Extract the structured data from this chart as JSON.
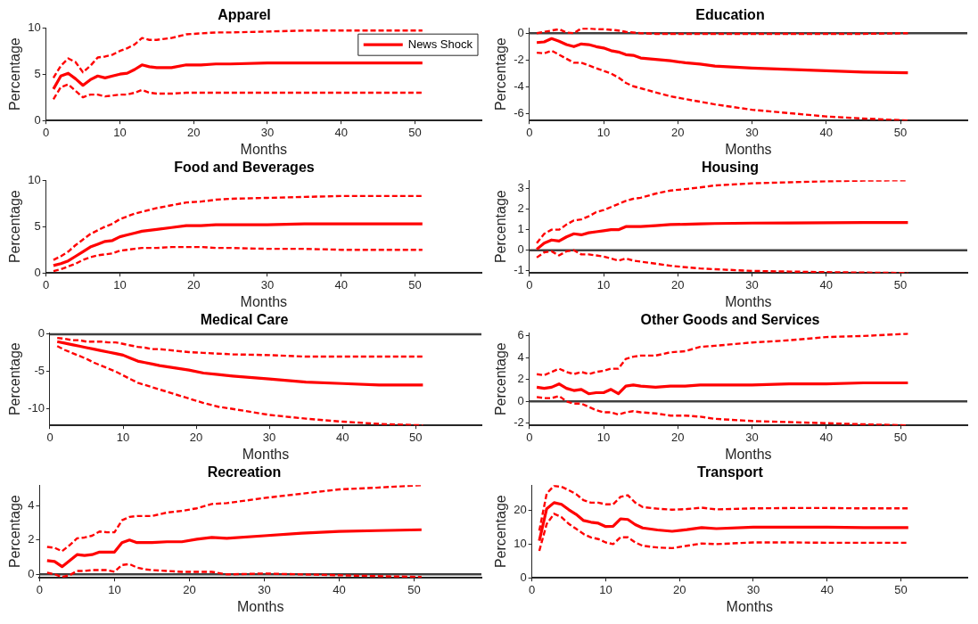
{
  "chart_data": [
    {
      "type": "line",
      "title": "Apparel",
      "xlabel": "Months",
      "ylabel": "Percentage",
      "marker": "none",
      "legend": "top right",
      "xlim": [
        0,
        59
      ],
      "xticks": [
        0,
        10,
        20,
        30,
        40,
        50
      ],
      "ylim": [
        0,
        10
      ],
      "yticks": [
        0,
        5,
        10
      ],
      "x": [
        1,
        2,
        3,
        4,
        5,
        6,
        7,
        8,
        9,
        10,
        11,
        12,
        13,
        14,
        15,
        17,
        19,
        21,
        23,
        25,
        30,
        35,
        40,
        45,
        51
      ],
      "series": [
        {
          "name": "News Shock",
          "color": "#ff0000",
          "line_style": "solid",
          "values": [
            3.4,
            4.8,
            5.1,
            4.5,
            3.8,
            4.4,
            4.8,
            4.6,
            4.8,
            5.0,
            5.1,
            5.5,
            6.0,
            5.8,
            5.7,
            5.7,
            6.0,
            6.0,
            6.1,
            6.1,
            6.2,
            6.2,
            6.2,
            6.2,
            6.2
          ]
        },
        {
          "color": "#ff0000",
          "line_style": "dashed",
          "values": [
            4.6,
            5.9,
            6.7,
            6.3,
            5.2,
            5.9,
            6.8,
            6.9,
            7.1,
            7.5,
            7.8,
            8.2,
            8.9,
            8.7,
            8.7,
            8.9,
            9.3,
            9.4,
            9.5,
            9.5,
            9.6,
            9.7,
            9.7,
            9.7,
            9.7
          ]
        },
        {
          "color": "#ff0000",
          "line_style": "dashed",
          "values": [
            2.3,
            3.6,
            3.9,
            3.2,
            2.5,
            2.8,
            2.8,
            2.6,
            2.7,
            2.8,
            2.8,
            3.0,
            3.3,
            3.0,
            2.9,
            2.9,
            3.0,
            3.0,
            3.0,
            3.0,
            3.0,
            3.0,
            3.0,
            3.0,
            3.0
          ]
        }
      ]
    },
    {
      "type": "line",
      "title": "Education",
      "xlabel": "Months",
      "ylabel": "Percentage",
      "marker": "none",
      "xlim": [
        0,
        59
      ],
      "xticks": [
        0,
        10,
        20,
        30,
        40,
        50
      ],
      "ylim": [
        -6.5,
        0.4
      ],
      "yticks": [
        -6,
        -4,
        -2,
        0
      ],
      "x": [
        1,
        2,
        3,
        4,
        5,
        6,
        7,
        8,
        9,
        10,
        11,
        12,
        13,
        14,
        15,
        17,
        19,
        21,
        23,
        25,
        30,
        35,
        40,
        45,
        51
      ],
      "ref_lines": [
        {
          "axis": "y",
          "value": 0,
          "color": "#404040"
        }
      ],
      "series": [
        {
          "color": "#ff0000",
          "line_style": "solid",
          "values": [
            -0.7,
            -0.65,
            -0.4,
            -0.6,
            -0.85,
            -1.0,
            -0.8,
            -0.85,
            -1.0,
            -1.1,
            -1.3,
            -1.4,
            -1.6,
            -1.65,
            -1.85,
            -1.95,
            -2.05,
            -2.2,
            -2.3,
            -2.45,
            -2.6,
            -2.7,
            -2.8,
            -2.9,
            -2.95
          ]
        },
        {
          "color": "#ff0000",
          "line_style": "dashed",
          "values": [
            0.0,
            0.1,
            0.2,
            0.3,
            0.05,
            0.0,
            0.35,
            0.35,
            0.3,
            0.3,
            0.25,
            0.2,
            0.1,
            0.05,
            0.0,
            -0.05,
            -0.05,
            -0.05,
            -0.05,
            -0.05,
            -0.05,
            -0.05,
            -0.05,
            -0.05,
            0.0
          ]
        },
        {
          "color": "#ff0000",
          "line_style": "dashed",
          "values": [
            -1.45,
            -1.5,
            -1.3,
            -1.6,
            -1.9,
            -2.2,
            -2.2,
            -2.4,
            -2.6,
            -2.8,
            -3.0,
            -3.3,
            -3.7,
            -3.95,
            -4.1,
            -4.4,
            -4.7,
            -4.9,
            -5.1,
            -5.3,
            -5.7,
            -5.95,
            -6.2,
            -6.35,
            -6.5
          ]
        }
      ]
    },
    {
      "type": "line",
      "title": "Food and Beverages",
      "xlabel": "Months",
      "ylabel": "Percentage",
      "marker": "none",
      "xlim": [
        0,
        59
      ],
      "xticks": [
        0,
        10,
        20,
        30,
        40,
        50
      ],
      "ylim": [
        0,
        10
      ],
      "yticks": [
        0,
        5,
        10
      ],
      "x": [
        1,
        2,
        3,
        4,
        5,
        6,
        7,
        8,
        9,
        10,
        11,
        12,
        13,
        14,
        15,
        17,
        19,
        21,
        23,
        25,
        30,
        35,
        40,
        45,
        51
      ],
      "series": [
        {
          "color": "#ff0000",
          "line_style": "solid",
          "values": [
            0.8,
            1.0,
            1.3,
            1.8,
            2.3,
            2.8,
            3.1,
            3.4,
            3.5,
            3.9,
            4.1,
            4.3,
            4.5,
            4.6,
            4.7,
            4.9,
            5.1,
            5.1,
            5.2,
            5.2,
            5.2,
            5.3,
            5.3,
            5.3,
            5.3
          ]
        },
        {
          "color": "#ff0000",
          "line_style": "dashed",
          "values": [
            1.4,
            1.8,
            2.3,
            3.0,
            3.6,
            4.2,
            4.6,
            5.0,
            5.3,
            5.8,
            6.1,
            6.4,
            6.6,
            6.8,
            7.0,
            7.3,
            7.6,
            7.7,
            7.9,
            8.0,
            8.1,
            8.2,
            8.3,
            8.3,
            8.3
          ]
        },
        {
          "color": "#ff0000",
          "line_style": "dashed",
          "values": [
            0.2,
            0.4,
            0.7,
            1.0,
            1.4,
            1.7,
            1.9,
            2.0,
            2.1,
            2.4,
            2.5,
            2.6,
            2.7,
            2.7,
            2.7,
            2.8,
            2.8,
            2.8,
            2.7,
            2.7,
            2.6,
            2.6,
            2.5,
            2.5,
            2.5
          ]
        }
      ]
    },
    {
      "type": "line",
      "title": "Housing",
      "xlabel": "Months",
      "ylabel": "Percentage",
      "marker": "none",
      "xlim": [
        0,
        59
      ],
      "xticks": [
        0,
        10,
        20,
        30,
        40,
        50
      ],
      "ylim": [
        -1.1,
        3.4
      ],
      "yticks": [
        -1,
        0,
        1,
        2,
        3
      ],
      "x": [
        1,
        2,
        3,
        4,
        5,
        6,
        7,
        8,
        9,
        10,
        11,
        12,
        13,
        14,
        15,
        17,
        19,
        21,
        23,
        25,
        30,
        35,
        40,
        45,
        51
      ],
      "ref_lines": [
        {
          "axis": "y",
          "value": 0,
          "color": "#404040"
        }
      ],
      "series": [
        {
          "color": "#ff0000",
          "line_style": "solid",
          "values": [
            0.05,
            0.35,
            0.5,
            0.45,
            0.65,
            0.8,
            0.75,
            0.85,
            0.9,
            0.95,
            1.0,
            1.0,
            1.15,
            1.15,
            1.15,
            1.2,
            1.25,
            1.26,
            1.28,
            1.3,
            1.32,
            1.33,
            1.34,
            1.35,
            1.35
          ]
        },
        {
          "color": "#ff0000",
          "line_style": "dashed",
          "values": [
            0.35,
            0.8,
            1.0,
            1.0,
            1.25,
            1.45,
            1.5,
            1.65,
            1.85,
            1.95,
            2.1,
            2.25,
            2.4,
            2.5,
            2.55,
            2.75,
            2.9,
            2.97,
            3.05,
            3.15,
            3.25,
            3.3,
            3.35,
            3.38,
            3.4
          ]
        },
        {
          "color": "#ff0000",
          "line_style": "dashed",
          "values": [
            -0.35,
            -0.1,
            -0.05,
            -0.25,
            -0.05,
            0.0,
            -0.2,
            -0.2,
            -0.25,
            -0.3,
            -0.4,
            -0.5,
            -0.4,
            -0.5,
            -0.55,
            -0.65,
            -0.75,
            -0.82,
            -0.88,
            -0.92,
            -1.0,
            -1.03,
            -1.06,
            -1.08,
            -1.1
          ]
        }
      ]
    },
    {
      "type": "line",
      "title": "Medical Care",
      "xlabel": "Months",
      "ylabel": "Percentage",
      "marker": "none",
      "xlim": [
        0,
        59
      ],
      "xticks": [
        0,
        10,
        20,
        30,
        40,
        50
      ],
      "ylim": [
        -12.2,
        0.2
      ],
      "yticks": [
        -10,
        -5,
        0
      ],
      "x": [
        1,
        2,
        3,
        4,
        5,
        6,
        7,
        8,
        9,
        10,
        11,
        12,
        13,
        14,
        15,
        17,
        19,
        21,
        23,
        25,
        30,
        35,
        40,
        45,
        51
      ],
      "ref_lines": [
        {
          "axis": "y",
          "value": 0,
          "color": "#404040"
        }
      ],
      "series": [
        {
          "color": "#ff0000",
          "line_style": "solid",
          "values": [
            -1.0,
            -1.2,
            -1.4,
            -1.6,
            -1.8,
            -2.0,
            -2.2,
            -2.4,
            -2.6,
            -2.8,
            -3.2,
            -3.6,
            -3.8,
            -4.0,
            -4.2,
            -4.5,
            -4.8,
            -5.2,
            -5.4,
            -5.6,
            -6.0,
            -6.4,
            -6.6,
            -6.8,
            -6.8
          ]
        },
        {
          "color": "#ff0000",
          "line_style": "dashed",
          "values": [
            -0.5,
            -0.6,
            -0.8,
            -0.8,
            -1.0,
            -1.0,
            -1.0,
            -1.1,
            -1.1,
            -1.3,
            -1.5,
            -1.7,
            -1.8,
            -2.0,
            -2.0,
            -2.2,
            -2.4,
            -2.5,
            -2.6,
            -2.7,
            -2.8,
            -3.0,
            -3.0,
            -3.0,
            -3.0
          ]
        },
        {
          "color": "#ff0000",
          "line_style": "dashed",
          "values": [
            -1.6,
            -2.1,
            -2.5,
            -2.9,
            -3.3,
            -3.8,
            -4.2,
            -4.6,
            -5.0,
            -5.5,
            -6.0,
            -6.5,
            -6.8,
            -7.1,
            -7.4,
            -8.0,
            -8.6,
            -9.2,
            -9.7,
            -10.0,
            -10.8,
            -11.3,
            -11.7,
            -12.0,
            -12.2
          ]
        }
      ]
    },
    {
      "type": "line",
      "title": "Other Goods and Services",
      "xlabel": "Months",
      "ylabel": "Percentage",
      "marker": "none",
      "xlim": [
        0,
        59
      ],
      "xticks": [
        0,
        10,
        20,
        30,
        40,
        50
      ],
      "ylim": [
        -2.2,
        6.3
      ],
      "yticks": [
        -2,
        0,
        2,
        4,
        6
      ],
      "x": [
        1,
        2,
        3,
        4,
        5,
        6,
        7,
        8,
        9,
        10,
        11,
        12,
        13,
        14,
        15,
        17,
        19,
        21,
        23,
        25,
        30,
        35,
        40,
        45,
        51
      ],
      "ref_lines": [
        {
          "axis": "y",
          "value": 0,
          "color": "#404040"
        }
      ],
      "series": [
        {
          "color": "#ff0000",
          "line_style": "solid",
          "values": [
            1.3,
            1.2,
            1.3,
            1.6,
            1.2,
            1.0,
            1.1,
            0.7,
            0.8,
            0.8,
            1.1,
            0.7,
            1.4,
            1.5,
            1.4,
            1.3,
            1.4,
            1.4,
            1.5,
            1.5,
            1.5,
            1.6,
            1.6,
            1.7,
            1.7
          ]
        },
        {
          "color": "#ff0000",
          "line_style": "dashed",
          "values": [
            2.5,
            2.4,
            2.7,
            3.0,
            2.7,
            2.5,
            2.7,
            2.5,
            2.7,
            2.8,
            3.0,
            3.0,
            3.9,
            4.1,
            4.2,
            4.2,
            4.5,
            4.6,
            5.0,
            5.1,
            5.4,
            5.6,
            5.9,
            6.0,
            6.2
          ]
        },
        {
          "color": "#ff0000",
          "line_style": "dashed",
          "values": [
            0.4,
            0.3,
            0.3,
            0.5,
            0.0,
            -0.2,
            -0.2,
            -0.5,
            -0.8,
            -1.0,
            -1.0,
            -1.2,
            -1.0,
            -0.9,
            -1.0,
            -1.1,
            -1.3,
            -1.3,
            -1.4,
            -1.6,
            -1.8,
            -1.9,
            -2.0,
            -2.1,
            -2.2
          ]
        }
      ]
    },
    {
      "type": "line",
      "title": "Recreation",
      "xlabel": "Months",
      "ylabel": "Percentage",
      "marker": "none",
      "xlim": [
        0,
        59
      ],
      "xticks": [
        0,
        10,
        20,
        30,
        40,
        50
      ],
      "ylim": [
        -0.2,
        5.2
      ],
      "yticks": [
        0,
        2,
        4
      ],
      "x": [
        1,
        2,
        3,
        4,
        5,
        6,
        7,
        8,
        9,
        10,
        11,
        12,
        13,
        14,
        15,
        17,
        19,
        21,
        23,
        25,
        30,
        35,
        40,
        45,
        51
      ],
      "ref_lines": [
        {
          "axis": "y",
          "value": 0,
          "color": "#404040"
        }
      ],
      "series": [
        {
          "color": "#ff0000",
          "line_style": "solid",
          "values": [
            0.8,
            0.75,
            0.45,
            0.8,
            1.15,
            1.1,
            1.15,
            1.3,
            1.3,
            1.3,
            1.85,
            2.0,
            1.85,
            1.85,
            1.85,
            1.9,
            1.9,
            2.05,
            2.15,
            2.1,
            2.25,
            2.4,
            2.5,
            2.55,
            2.6
          ]
        },
        {
          "color": "#ff0000",
          "line_style": "dashed",
          "values": [
            1.6,
            1.55,
            1.35,
            1.7,
            2.1,
            2.15,
            2.25,
            2.5,
            2.45,
            2.45,
            3.15,
            3.35,
            3.4,
            3.4,
            3.4,
            3.6,
            3.7,
            3.85,
            4.1,
            4.15,
            4.45,
            4.7,
            4.95,
            5.05,
            5.2
          ]
        },
        {
          "color": "#ff0000",
          "line_style": "dashed",
          "values": [
            0.1,
            0.0,
            -0.15,
            -0.05,
            0.2,
            0.2,
            0.25,
            0.25,
            0.25,
            0.15,
            0.55,
            0.6,
            0.4,
            0.3,
            0.25,
            0.2,
            0.15,
            0.15,
            0.15,
            0.0,
            0.05,
            0.0,
            -0.05,
            -0.1,
            -0.15
          ]
        }
      ]
    },
    {
      "type": "line",
      "title": "Transport",
      "xlabel": "Months",
      "ylabel": "Percentage",
      "marker": "none",
      "xlim": [
        0,
        59
      ],
      "xticks": [
        0,
        10,
        20,
        30,
        40,
        50
      ],
      "ylim": [
        0,
        27.5
      ],
      "yticks": [
        0,
        10,
        20
      ],
      "x": [
        1,
        2,
        3,
        4,
        5,
        6,
        7,
        8,
        9,
        10,
        11,
        12,
        13,
        14,
        15,
        17,
        19,
        21,
        23,
        25,
        30,
        35,
        40,
        45,
        51
      ],
      "series": [
        {
          "color": "#ff0000",
          "line_style": "solid",
          "values": [
            11,
            20.5,
            22.3,
            21.8,
            20.2,
            18.8,
            17,
            16.5,
            16.2,
            15.2,
            15.3,
            17.5,
            17.3,
            15.8,
            14.8,
            14.2,
            13.8,
            14.3,
            14.9,
            14.6,
            15.0,
            15.0,
            15.0,
            14.9,
            14.9
          ]
        },
        {
          "color": "#ff0000",
          "line_style": "dashed",
          "values": [
            14,
            25,
            27.3,
            27,
            26,
            24.8,
            23,
            22.3,
            22.3,
            21.8,
            21.8,
            24,
            24.5,
            22.3,
            21,
            20.5,
            20.2,
            20.4,
            20.8,
            20.3,
            20.6,
            20.7,
            20.7,
            20.6,
            20.6
          ]
        },
        {
          "color": "#ff0000",
          "line_style": "dashed",
          "values": [
            8,
            16,
            19,
            18,
            16,
            14.5,
            13,
            12,
            11.5,
            10.5,
            10,
            12,
            12,
            10.5,
            9.5,
            9.0,
            8.8,
            9.5,
            10.2,
            10.0,
            10.5,
            10.5,
            10.4,
            10.4,
            10.4
          ]
        }
      ]
    }
  ]
}
